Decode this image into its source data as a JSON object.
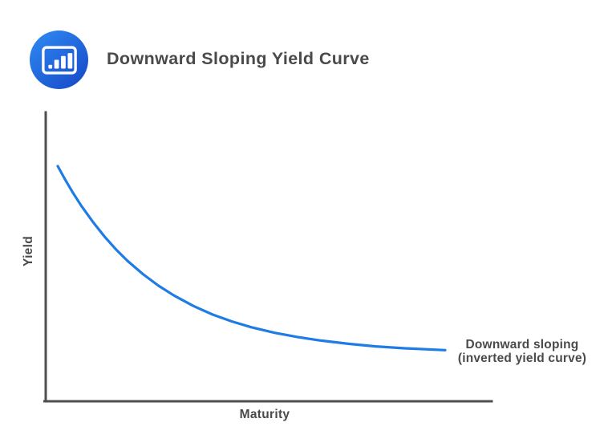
{
  "header": {
    "title": "Downward Sloping Yield Curve"
  },
  "logo": {
    "icon": "bar-chart-icon"
  },
  "colors": {
    "curve_blue": "#1e7ce4",
    "axis_gray": "#4f4f4f",
    "text_gray": "#4a4a4a",
    "logo_gradient_start": "#2f8cf4",
    "logo_gradient_end": "#1646c6",
    "background": "#ffffff"
  },
  "chart_data": {
    "type": "line",
    "title": "Downward Sloping Yield Curve",
    "xlabel": "Maturity",
    "ylabel": "Yield",
    "axis_ticks": "none",
    "gridlines": false,
    "legend": "none",
    "annotation": {
      "line1": "Downward sloping",
      "line2": "(inverted yield curve)",
      "position": "right-of-curve-end"
    },
    "series": [
      {
        "name": "Inverted yield curve",
        "shape": "convex exponential decay, flattening toward long maturities",
        "x_norm": [
          0,
          0.02,
          0.04,
          0.06,
          0.09,
          0.12,
          0.15,
          0.18,
          0.22,
          0.26,
          0.3,
          0.35,
          0.4,
          0.45,
          0.5,
          0.56,
          0.62,
          0.68,
          0.75,
          0.82,
          0.9,
          1.0
        ],
        "yield_norm": [
          0.814,
          0.765,
          0.72,
          0.678,
          0.622,
          0.571,
          0.526,
          0.486,
          0.44,
          0.4,
          0.366,
          0.33,
          0.3,
          0.276,
          0.256,
          0.237,
          0.222,
          0.21,
          0.199,
          0.19,
          0.183,
          0.177
        ]
      }
    ]
  }
}
